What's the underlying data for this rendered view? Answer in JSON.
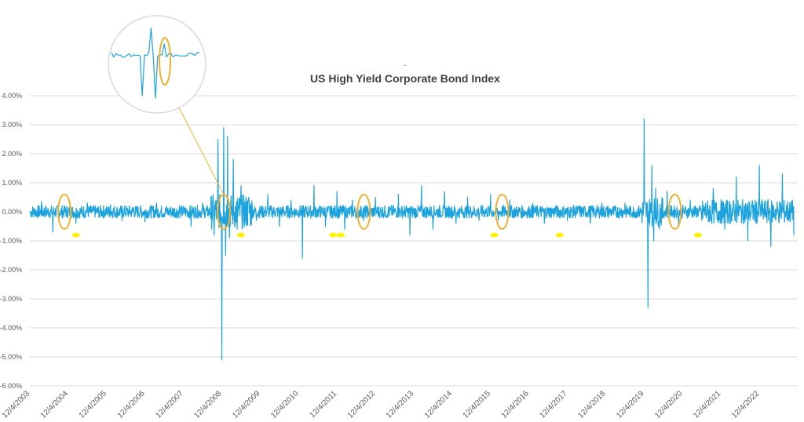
{
  "chart_data": {
    "type": "line",
    "title": "US High Yield Corporate Bond Index",
    "subtitle_mark": "-",
    "xlabel": "",
    "ylabel": "",
    "x_tick_labels": [
      "12/4/2003",
      "12/4/2004",
      "12/4/2005",
      "12/4/2006",
      "12/4/2007",
      "12/4/2008",
      "12/4/2009",
      "12/4/2010",
      "12/4/2011",
      "12/4/2012",
      "12/4/2013",
      "12/4/2014",
      "12/4/2015",
      "12/4/2016",
      "12/4/2017",
      "12/4/2018",
      "12/4/2019",
      "12/4/2020",
      "12/4/2021",
      "12/4/2022"
    ],
    "y_tick_labels": [
      "4.00%",
      "3.00%",
      "2.00%",
      "1.00%",
      "0.00%",
      "-1.00%",
      "-2.00%",
      "-3.00%",
      "-4.00%",
      "-5.00%",
      "-6.00%"
    ],
    "ylim": [
      -6,
      4
    ],
    "xlim": [
      "12/4/2003",
      "12/4/2023"
    ],
    "grid": true,
    "legend": "none",
    "series": [
      {
        "color": "#1CA3DE",
        "x_unit": "years since 12/4/2003",
        "x": [
          0.0,
          0.3,
          0.6,
          0.9,
          1.2,
          1.5,
          1.8,
          2.1,
          2.4,
          2.7,
          3.0,
          3.3,
          3.6,
          3.9,
          4.2,
          4.5,
          4.8,
          4.9,
          5.0,
          5.05,
          5.1,
          5.15,
          5.2,
          5.3,
          5.4,
          5.5,
          5.6,
          5.7,
          5.9,
          6.2,
          6.5,
          6.8,
          7.1,
          7.4,
          7.7,
          8.0,
          8.2,
          8.4,
          8.7,
          9.0,
          9.3,
          9.6,
          9.9,
          10.2,
          10.5,
          10.8,
          11.1,
          11.4,
          11.7,
          12.0,
          12.2,
          12.5,
          12.8,
          13.1,
          13.4,
          13.7,
          14.0,
          14.3,
          14.6,
          14.9,
          15.2,
          15.5,
          15.8,
          16.0,
          16.1,
          16.2,
          16.25,
          16.3,
          16.4,
          16.6,
          16.9,
          17.2,
          17.5,
          17.8,
          18.1,
          18.4,
          18.7,
          19.0,
          19.3,
          19.6,
          19.9
        ],
        "values": [
          0.0,
          0.35,
          -0.7,
          0.1,
          -0.4,
          0.3,
          -0.2,
          0.25,
          -0.3,
          0.15,
          -0.35,
          0.3,
          -0.1,
          0.2,
          -0.5,
          0.3,
          -0.8,
          2.5,
          -5.1,
          2.9,
          -1.5,
          2.6,
          -0.9,
          1.8,
          -0.6,
          0.9,
          -0.4,
          0.5,
          -0.3,
          0.6,
          -0.5,
          0.4,
          -1.6,
          0.9,
          -0.5,
          0.7,
          -0.6,
          0.4,
          -0.3,
          0.5,
          -0.2,
          0.6,
          -0.8,
          0.9,
          -0.6,
          0.7,
          -0.4,
          0.5,
          -0.3,
          0.6,
          -0.3,
          0.4,
          -0.2,
          0.3,
          -0.4,
          0.2,
          -0.3,
          0.2,
          -0.4,
          0.3,
          -0.1,
          0.3,
          -0.2,
          3.2,
          -3.3,
          1.6,
          -1.0,
          0.8,
          -0.6,
          0.7,
          -0.5,
          0.4,
          -0.3,
          0.8,
          -0.6,
          1.2,
          -1.0,
          1.6,
          -1.2,
          1.3,
          -0.8
        ]
      }
    ],
    "highlights": {
      "ellipse_color": "#F0B030",
      "dot_color": "#FFF200",
      "ellipse_x": [
        0.9,
        5.05,
        8.7,
        12.3,
        16.8
      ],
      "dot_x": [
        1.2,
        5.5,
        7.9,
        8.1,
        12.1,
        13.8,
        17.4
      ],
      "inset": {
        "note_x": 5.05,
        "ring_color": "#d9d9d9"
      }
    }
  }
}
